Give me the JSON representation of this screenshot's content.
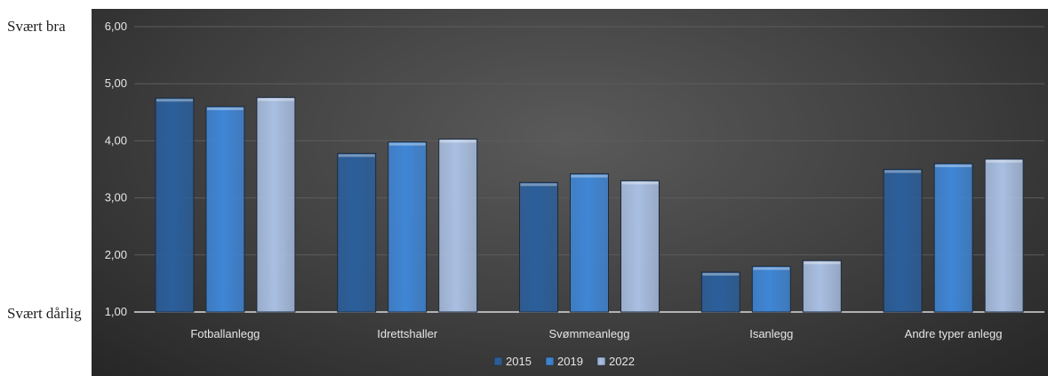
{
  "side_labels": {
    "top": "Svært bra",
    "bottom": "Svært dårlig"
  },
  "chart_data": {
    "type": "bar",
    "categories": [
      "Fotballanlegg",
      "Idrettshaller",
      "Svømmeanlegg",
      "Isanlegg",
      "Andre typer anlegg"
    ],
    "series": [
      {
        "name": "2015",
        "values": [
          4.75,
          3.78,
          3.27,
          1.7,
          3.5
        ],
        "color": "#2b5f9c"
      },
      {
        "name": "2019",
        "values": [
          4.6,
          3.98,
          3.42,
          1.8,
          3.6
        ],
        "color": "#3f86d6"
      },
      {
        "name": "2022",
        "values": [
          4.76,
          4.03,
          3.3,
          1.9,
          3.68
        ],
        "color": "#a9bfe2"
      }
    ],
    "ylim": [
      1,
      6
    ],
    "yticks": [
      "1,00",
      "2,00",
      "3,00",
      "4,00",
      "5,00",
      "6,00"
    ],
    "grid": true,
    "legend_position": "bottom",
    "background": "#404040"
  }
}
